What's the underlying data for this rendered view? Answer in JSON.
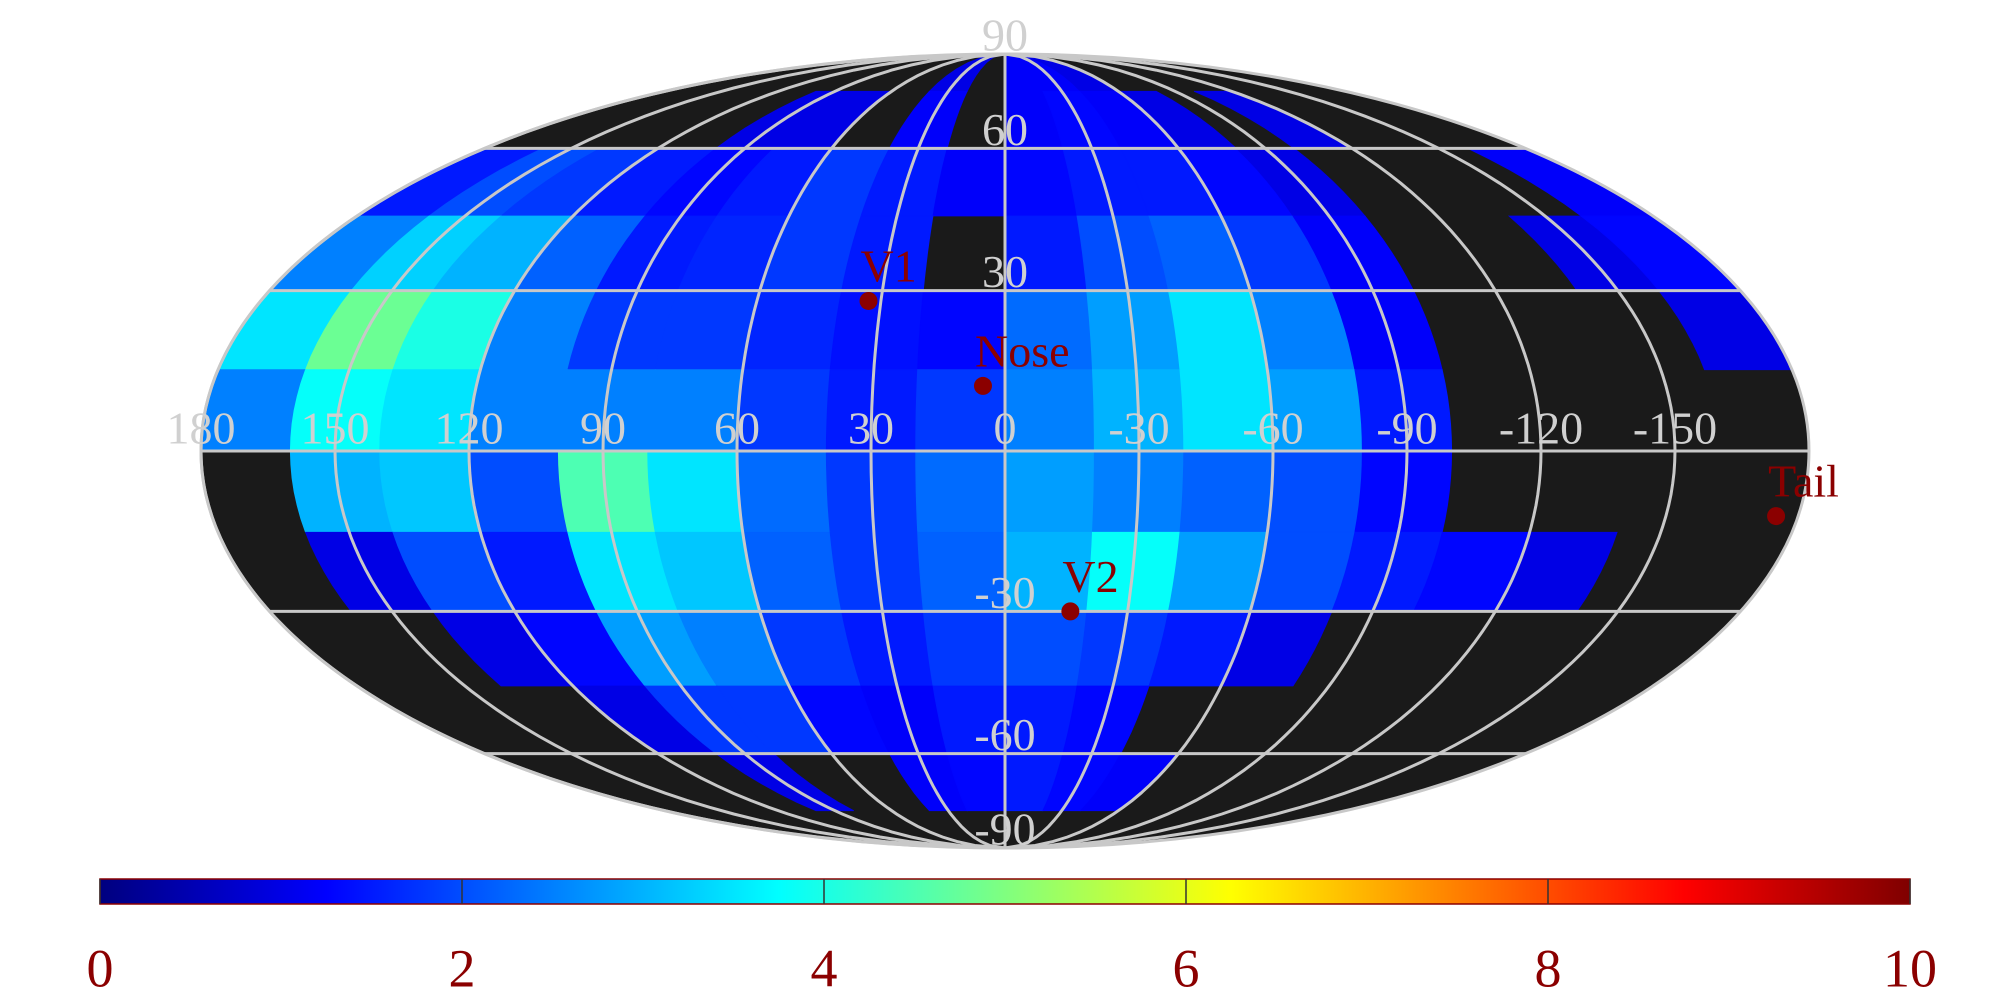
{
  "chart_data": {
    "type": "mollweide-heatmap",
    "xlim": [
      180,
      -180
    ],
    "ylim": [
      -90,
      90
    ],
    "lon_edges": [
      180,
      160,
      140,
      120,
      100,
      80,
      60,
      40,
      20,
      0,
      -20,
      -40,
      -60,
      -80,
      -100,
      -120,
      -140,
      -160,
      -180
    ],
    "lat_edges": [
      90,
      75,
      60,
      45,
      30,
      15,
      0,
      -15,
      -30,
      -45,
      -60,
      -75,
      -90
    ],
    "values": [
      [
        null,
        null,
        null,
        null,
        null,
        null,
        null,
        1,
        null,
        1.2,
        1.2,
        1,
        null,
        null,
        null,
        null,
        null,
        null
      ],
      [
        null,
        null,
        null,
        null,
        1,
        1,
        null,
        1.2,
        null,
        1.2,
        1.3,
        1.2,
        1,
        null,
        1,
        null,
        null,
        null
      ],
      [
        1.5,
        2,
        1.8,
        1.5,
        1.3,
        1.5,
        1.8,
        1.5,
        1.2,
        1.3,
        1.5,
        1.5,
        1.3,
        1,
        null,
        null,
        null,
        1.2
      ],
      [
        2.5,
        3.3,
        3,
        2.2,
        1.5,
        1.6,
        1.8,
        1.5,
        null,
        1.5,
        2,
        2.2,
        1.8,
        1.2,
        null,
        null,
        1,
        1.3
      ],
      [
        3.5,
        4.8,
        4,
        2.5,
        1.8,
        1.8,
        1.6,
        1.4,
        1.3,
        2.3,
        2.8,
        3.5,
        2.5,
        1.2,
        null,
        null,
        null,
        1
      ],
      [
        2.5,
        3.8,
        3.5,
        2.5,
        2.5,
        2.5,
        1.8,
        1.5,
        1.8,
        2.5,
        3,
        3.5,
        2.8,
        1.5,
        null,
        null,
        null,
        null
      ],
      [
        null,
        3,
        3.2,
        2,
        4.5,
        3.5,
        2.3,
        1.8,
        2.3,
        2.8,
        2.5,
        2.2,
        2,
        1.3,
        null,
        null,
        null,
        null
      ],
      [
        null,
        1,
        2,
        1.5,
        3.5,
        3.2,
        2.2,
        1.8,
        2.2,
        3,
        3.8,
        2.8,
        2,
        1.5,
        1.3,
        1,
        null,
        null
      ],
      [
        null,
        null,
        1,
        1.3,
        2.8,
        2.5,
        1.8,
        1.5,
        1.8,
        2,
        1.8,
        1.5,
        1,
        null,
        null,
        null,
        null,
        null
      ],
      [
        null,
        null,
        null,
        1,
        1.8,
        1.8,
        1.3,
        1.2,
        1.5,
        1.5,
        1.3,
        null,
        null,
        null,
        null,
        null,
        null,
        null
      ],
      [
        null,
        null,
        null,
        null,
        1,
        null,
        null,
        1.2,
        1.3,
        1.5,
        1.3,
        1.2,
        null,
        null,
        null,
        null,
        null,
        null
      ],
      [
        null,
        null,
        null,
        null,
        null,
        null,
        null,
        null,
        null,
        null,
        null,
        null,
        null,
        null,
        null,
        null,
        null,
        null
      ]
    ],
    "xticks": [
      180,
      150,
      120,
      90,
      60,
      30,
      0,
      -30,
      -60,
      -90,
      -120,
      -150
    ],
    "yticks": [
      90,
      60,
      30,
      -30,
      -60,
      -90
    ],
    "grid": true,
    "points": [
      {
        "label": "V1",
        "lon": 33,
        "lat": 28
      },
      {
        "label": "Nose",
        "lon": 5,
        "lat": 12
      },
      {
        "label": "V2",
        "lon": -16,
        "lat": -30
      },
      {
        "label": "Tail",
        "lon": -175,
        "lat": -12
      }
    ],
    "colorbar": {
      "lim": [
        0,
        10
      ],
      "ticks": [
        0,
        2,
        4,
        6,
        8,
        10
      ],
      "colormap": [
        {
          "pos": 0,
          "color": "#00007f"
        },
        {
          "pos": 0.125,
          "color": "#0000ff"
        },
        {
          "pos": 0.375,
          "color": "#00ffff"
        },
        {
          "pos": 0.625,
          "color": "#ffff00"
        },
        {
          "pos": 0.875,
          "color": "#ff0000"
        },
        {
          "pos": 1,
          "color": "#7f0000"
        }
      ]
    }
  }
}
